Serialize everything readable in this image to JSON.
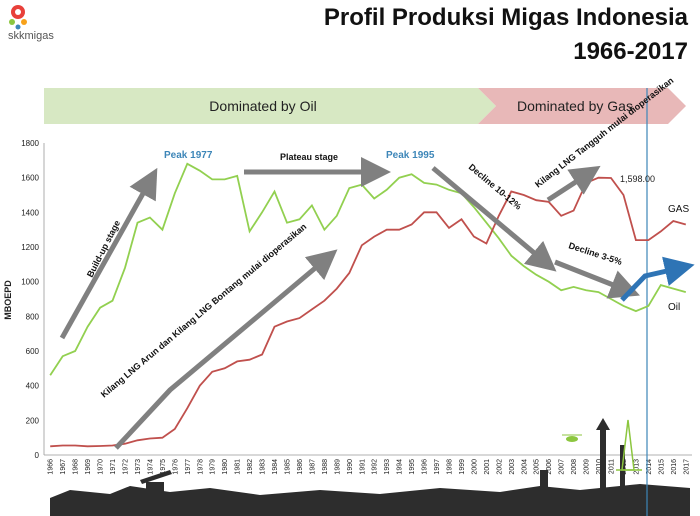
{
  "header": {
    "logo_text": "skkmigas",
    "title_line1": "Profil Produksi Migas Indonesia",
    "title_line2": "1966-2017"
  },
  "banner": {
    "oil": "Dominated by Oil",
    "gas": "Dominated by Gas"
  },
  "annotations": {
    "buildup": "Build-up stage",
    "peak1977": "Peak 1977",
    "plateau": "Plateau stage",
    "peak1995": "Peak 1995",
    "decline1": "Decline 10-12%",
    "decline2": "Decline 3-5%",
    "lng_tangguh": "Kilang LNG Tangguh mulai dioperasikan",
    "lng_arun": "Kilang LNG Arun dan Kilang LNG Bontang mulai dioperasikan",
    "value_label": "1,598.00",
    "gas_label": "GAS",
    "oil_label": "Oil"
  },
  "colors": {
    "oil": "#92d050",
    "gas": "#c0504d",
    "oil_banner": "#d7e8c3",
    "gas_banner": "#e8b8b8",
    "divider": "#3d86b8"
  },
  "chart_data": {
    "type": "line",
    "ylabel": "MBOEPD",
    "ylim": [
      0,
      1800
    ],
    "yticks": [
      0,
      200,
      400,
      600,
      800,
      1000,
      1200,
      1400,
      1600,
      1800
    ],
    "x": [
      1966,
      1967,
      1968,
      1969,
      1970,
      1971,
      1972,
      1973,
      1974,
      1975,
      1976,
      1977,
      1978,
      1979,
      1980,
      1981,
      1982,
      1983,
      1984,
      1985,
      1986,
      1987,
      1988,
      1989,
      1990,
      1991,
      1992,
      1993,
      1994,
      1995,
      1996,
      1997,
      1998,
      1999,
      2000,
      2001,
      2002,
      2003,
      2004,
      2005,
      2006,
      2007,
      2008,
      2009,
      2010,
      2011,
      2012,
      2013,
      2014,
      2015,
      2016,
      2017
    ],
    "series": [
      {
        "name": "Oil",
        "color": "#92d050",
        "values": [
          460,
          570,
          600,
          740,
          850,
          890,
          1080,
          1340,
          1370,
          1300,
          1510,
          1680,
          1640,
          1590,
          1590,
          1610,
          1290,
          1400,
          1520,
          1340,
          1360,
          1440,
          1300,
          1380,
          1540,
          1560,
          1480,
          1530,
          1600,
          1620,
          1570,
          1560,
          1530,
          1510,
          1430,
          1340,
          1250,
          1150,
          1090,
          1040,
          1000,
          950,
          970,
          950,
          940,
          900,
          860,
          830,
          860,
          980,
          960,
          940
        ]
      },
      {
        "name": "GAS",
        "color": "#c0504d",
        "values": [
          50,
          55,
          55,
          50,
          52,
          55,
          65,
          85,
          95,
          100,
          150,
          270,
          400,
          480,
          500,
          540,
          550,
          580,
          740,
          770,
          790,
          840,
          890,
          960,
          1050,
          1210,
          1260,
          1300,
          1300,
          1330,
          1400,
          1400,
          1310,
          1360,
          1260,
          1220,
          1380,
          1520,
          1500,
          1470,
          1460,
          1380,
          1410,
          1570,
          1600,
          1598,
          1500,
          1240,
          1240,
          1290,
          1350,
          1330
        ]
      }
    ]
  }
}
